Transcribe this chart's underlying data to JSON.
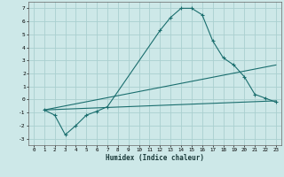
{
  "xlabel": "Humidex (Indice chaleur)",
  "bg_color": "#cde8e8",
  "grid_color": "#aacfcf",
  "line_color": "#1a6e6e",
  "xlim": [
    -0.5,
    23.5
  ],
  "ylim": [
    -3.5,
    7.5
  ],
  "xticks": [
    0,
    1,
    2,
    3,
    4,
    5,
    6,
    7,
    8,
    9,
    10,
    11,
    12,
    13,
    14,
    15,
    16,
    17,
    18,
    19,
    20,
    21,
    22,
    23
  ],
  "yticks": [
    -3,
    -2,
    -1,
    0,
    1,
    2,
    3,
    4,
    5,
    6,
    7
  ],
  "series1_x": [
    1,
    2,
    3,
    4,
    5,
    6,
    7,
    12,
    13,
    14,
    15,
    16,
    17,
    18,
    19,
    20,
    21,
    22,
    23
  ],
  "series1_y": [
    -0.8,
    -1.2,
    -2.7,
    -2.0,
    -1.2,
    -0.9,
    -0.55,
    5.3,
    6.3,
    7.0,
    7.0,
    6.5,
    4.5,
    3.2,
    2.65,
    1.75,
    0.4,
    0.1,
    -0.2
  ],
  "series2_x": [
    1,
    23
  ],
  "series2_y": [
    -0.8,
    -0.1
  ],
  "series3_x": [
    1,
    23
  ],
  "series3_y": [
    -0.8,
    2.65
  ]
}
